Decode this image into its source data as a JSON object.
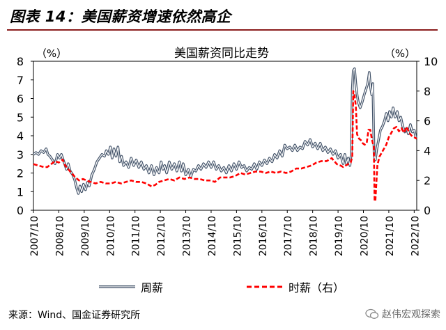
{
  "header": {
    "title": "图表 14：美国薪资增速依然高企"
  },
  "footer": {
    "source": "来源：Wind、国金证券研究所",
    "watermark": "赵伟宏观探索"
  },
  "chart_data": {
    "type": "line",
    "title": "美国薪资同比走势",
    "left_axis_unit": "（%）",
    "right_axis_unit": "（%）",
    "ylim_left": [
      0,
      8
    ],
    "ylim_right": [
      0,
      10
    ],
    "yticks_left": [
      "0",
      "1",
      "2",
      "3",
      "4",
      "5",
      "6",
      "7",
      "8"
    ],
    "yticks_right": [
      "0",
      "2",
      "4",
      "6",
      "8",
      "10"
    ],
    "xticks": [
      "2007/10",
      "2008/10",
      "2009/10",
      "2010/10",
      "2011/10",
      "2012/10",
      "2013/10",
      "2014/10",
      "2015/10",
      "2016/10",
      "2017/10",
      "2018/10",
      "2019/10",
      "2020/10",
      "2021/10",
      "2022/10"
    ],
    "x_start": 2007.75,
    "x_end": 2022.85,
    "series": [
      {
        "name": "周薪",
        "axis": "left",
        "color": "#44546a",
        "style": "double",
        "points": [
          [
            2007.75,
            3.0
          ],
          [
            2007.85,
            3.1
          ],
          [
            2007.95,
            3.0
          ],
          [
            2008.05,
            3.2
          ],
          [
            2008.15,
            3.1
          ],
          [
            2008.25,
            3.3
          ],
          [
            2008.32,
            3.0
          ],
          [
            2008.4,
            2.9
          ],
          [
            2008.5,
            2.7
          ],
          [
            2008.6,
            2.5
          ],
          [
            2008.7,
            3.0
          ],
          [
            2008.78,
            2.8
          ],
          [
            2008.85,
            3.0
          ],
          [
            2008.95,
            2.6
          ],
          [
            2009.05,
            2.2
          ],
          [
            2009.12,
            2.5
          ],
          [
            2009.2,
            2.1
          ],
          [
            2009.3,
            1.9
          ],
          [
            2009.38,
            1.6
          ],
          [
            2009.45,
            1.2
          ],
          [
            2009.52,
            0.9
          ],
          [
            2009.58,
            1.3
          ],
          [
            2009.65,
            1.0
          ],
          [
            2009.72,
            1.4
          ],
          [
            2009.8,
            1.1
          ],
          [
            2009.88,
            1.5
          ],
          [
            2009.95,
            1.3
          ],
          [
            2010.05,
            1.9
          ],
          [
            2010.15,
            2.2
          ],
          [
            2010.25,
            2.6
          ],
          [
            2010.35,
            2.8
          ],
          [
            2010.45,
            3.0
          ],
          [
            2010.55,
            2.9
          ],
          [
            2010.62,
            3.2
          ],
          [
            2010.7,
            3.0
          ],
          [
            2010.78,
            3.4
          ],
          [
            2010.85,
            2.8
          ],
          [
            2010.92,
            3.3
          ],
          [
            2011.0,
            2.9
          ],
          [
            2011.08,
            3.4
          ],
          [
            2011.15,
            2.6
          ],
          [
            2011.22,
            2.9
          ],
          [
            2011.3,
            2.4
          ],
          [
            2011.4,
            2.6
          ],
          [
            2011.5,
            2.3
          ],
          [
            2011.6,
            2.8
          ],
          [
            2011.7,
            2.4
          ],
          [
            2011.8,
            2.7
          ],
          [
            2011.9,
            2.3
          ],
          [
            2012.0,
            2.6
          ],
          [
            2012.1,
            2.2
          ],
          [
            2012.2,
            2.4
          ],
          [
            2012.3,
            2.0
          ],
          [
            2012.4,
            2.4
          ],
          [
            2012.5,
            1.9
          ],
          [
            2012.6,
            2.3
          ],
          [
            2012.7,
            2.0
          ],
          [
            2012.78,
            2.6
          ],
          [
            2012.85,
            2.2
          ],
          [
            2012.92,
            2.4
          ],
          [
            2013.0,
            2.0
          ],
          [
            2013.1,
            2.6
          ],
          [
            2013.2,
            2.2
          ],
          [
            2013.3,
            2.5
          ],
          [
            2013.4,
            2.1
          ],
          [
            2013.5,
            2.6
          ],
          [
            2013.58,
            2.1
          ],
          [
            2013.65,
            2.5
          ],
          [
            2013.75,
            1.9
          ],
          [
            2013.85,
            2.2
          ],
          [
            2013.95,
            1.8
          ],
          [
            2014.05,
            2.2
          ],
          [
            2014.15,
            2.1
          ],
          [
            2014.25,
            2.4
          ],
          [
            2014.35,
            2.2
          ],
          [
            2014.45,
            2.5
          ],
          [
            2014.55,
            2.3
          ],
          [
            2014.65,
            2.6
          ],
          [
            2014.75,
            2.3
          ],
          [
            2014.85,
            2.6
          ],
          [
            2014.95,
            2.2
          ],
          [
            2015.05,
            2.4
          ],
          [
            2015.15,
            2.1
          ],
          [
            2015.25,
            2.3
          ],
          [
            2015.35,
            2.0
          ],
          [
            2015.45,
            2.4
          ],
          [
            2015.55,
            2.1
          ],
          [
            2015.65,
            2.5
          ],
          [
            2015.75,
            2.2
          ],
          [
            2015.85,
            2.6
          ],
          [
            2015.95,
            2.3
          ],
          [
            2016.05,
            2.4
          ],
          [
            2016.15,
            2.1
          ],
          [
            2016.25,
            2.3
          ],
          [
            2016.35,
            2.2
          ],
          [
            2016.45,
            2.5
          ],
          [
            2016.55,
            2.2
          ],
          [
            2016.65,
            2.6
          ],
          [
            2016.75,
            2.4
          ],
          [
            2016.85,
            2.7
          ],
          [
            2016.95,
            2.5
          ],
          [
            2017.05,
            2.8
          ],
          [
            2017.15,
            2.6
          ],
          [
            2017.25,
            3.0
          ],
          [
            2017.35,
            2.8
          ],
          [
            2017.45,
            3.2
          ],
          [
            2017.55,
            2.9
          ],
          [
            2017.65,
            3.5
          ],
          [
            2017.75,
            3.3
          ],
          [
            2017.85,
            3.4
          ],
          [
            2017.95,
            3.2
          ],
          [
            2018.05,
            3.5
          ],
          [
            2018.15,
            3.2
          ],
          [
            2018.25,
            3.4
          ],
          [
            2018.35,
            3.3
          ],
          [
            2018.45,
            3.7
          ],
          [
            2018.55,
            3.5
          ],
          [
            2018.65,
            3.8
          ],
          [
            2018.75,
            3.4
          ],
          [
            2018.85,
            3.6
          ],
          [
            2018.95,
            3.3
          ],
          [
            2019.05,
            3.6
          ],
          [
            2019.15,
            3.2
          ],
          [
            2019.25,
            3.4
          ],
          [
            2019.35,
            3.1
          ],
          [
            2019.45,
            3.3
          ],
          [
            2019.55,
            3.0
          ],
          [
            2019.65,
            3.2
          ],
          [
            2019.75,
            2.8
          ],
          [
            2019.85,
            3.0
          ],
          [
            2019.95,
            2.5
          ],
          [
            2020.02,
            3.0
          ],
          [
            2020.08,
            2.5
          ],
          [
            2020.15,
            2.8
          ],
          [
            2020.22,
            2.4
          ],
          [
            2020.27,
            3.0
          ],
          [
            2020.31,
            6.5
          ],
          [
            2020.35,
            7.5
          ],
          [
            2020.4,
            7.6
          ],
          [
            2020.45,
            6.8
          ],
          [
            2020.5,
            6.2
          ],
          [
            2020.55,
            5.8
          ],
          [
            2020.62,
            5.5
          ],
          [
            2020.7,
            5.8
          ],
          [
            2020.78,
            6.2
          ],
          [
            2020.85,
            6.5
          ],
          [
            2020.92,
            6.8
          ],
          [
            2020.98,
            7.4
          ],
          [
            2021.03,
            6.6
          ],
          [
            2021.08,
            6.2
          ],
          [
            2021.12,
            6.8
          ],
          [
            2021.17,
            3.0
          ],
          [
            2021.22,
            2.7
          ],
          [
            2021.28,
            3.3
          ],
          [
            2021.35,
            3.8
          ],
          [
            2021.42,
            4.3
          ],
          [
            2021.5,
            4.5
          ],
          [
            2021.58,
            4.8
          ],
          [
            2021.65,
            5.2
          ],
          [
            2021.72,
            4.8
          ],
          [
            2021.78,
            5.3
          ],
          [
            2021.85,
            5.0
          ],
          [
            2021.92,
            5.5
          ],
          [
            2022.0,
            5.0
          ],
          [
            2022.08,
            5.3
          ],
          [
            2022.15,
            4.8
          ],
          [
            2022.22,
            5.0
          ],
          [
            2022.3,
            4.5
          ],
          [
            2022.38,
            4.2
          ],
          [
            2022.45,
            4.4
          ],
          [
            2022.52,
            4.1
          ],
          [
            2022.6,
            4.6
          ],
          [
            2022.68,
            4.2
          ],
          [
            2022.75,
            4.3
          ],
          [
            2022.82,
            3.9
          ]
        ]
      },
      {
        "name": "时薪（右）",
        "axis": "right",
        "color": "#ff0000",
        "style": "dashed",
        "points": [
          [
            2007.75,
            3.1
          ],
          [
            2007.95,
            3.0
          ],
          [
            2008.15,
            2.9
          ],
          [
            2008.3,
            2.9
          ],
          [
            2008.45,
            3.1
          ],
          [
            2008.6,
            3.3
          ],
          [
            2008.75,
            3.2
          ],
          [
            2008.9,
            3.4
          ],
          [
            2009.0,
            3.0
          ],
          [
            2009.1,
            2.8
          ],
          [
            2009.2,
            2.6
          ],
          [
            2009.3,
            2.4
          ],
          [
            2009.4,
            2.2
          ],
          [
            2009.55,
            2.0
          ],
          [
            2009.7,
            2.1
          ],
          [
            2009.85,
            2.0
          ],
          [
            2010.0,
            1.9
          ],
          [
            2010.2,
            1.8
          ],
          [
            2010.4,
            1.9
          ],
          [
            2010.6,
            1.8
          ],
          [
            2010.8,
            1.8
          ],
          [
            2011.0,
            1.9
          ],
          [
            2011.2,
            1.8
          ],
          [
            2011.4,
            1.9
          ],
          [
            2011.6,
            2.0
          ],
          [
            2011.8,
            1.9
          ],
          [
            2012.0,
            1.9
          ],
          [
            2012.2,
            1.8
          ],
          [
            2012.4,
            1.6
          ],
          [
            2012.55,
            1.7
          ],
          [
            2012.7,
            1.9
          ],
          [
            2012.9,
            2.0
          ],
          [
            2013.1,
            2.1
          ],
          [
            2013.3,
            2.0
          ],
          [
            2013.5,
            2.2
          ],
          [
            2013.7,
            2.1
          ],
          [
            2013.9,
            2.2
          ],
          [
            2014.1,
            2.1
          ],
          [
            2014.3,
            2.1
          ],
          [
            2014.5,
            2.0
          ],
          [
            2014.7,
            2.0
          ],
          [
            2014.9,
            1.9
          ],
          [
            2015.1,
            2.2
          ],
          [
            2015.3,
            2.2
          ],
          [
            2015.5,
            2.2
          ],
          [
            2015.7,
            2.3
          ],
          [
            2015.9,
            2.5
          ],
          [
            2016.1,
            2.4
          ],
          [
            2016.3,
            2.5
          ],
          [
            2016.5,
            2.6
          ],
          [
            2016.7,
            2.6
          ],
          [
            2016.9,
            2.5
          ],
          [
            2017.1,
            2.6
          ],
          [
            2017.3,
            2.5
          ],
          [
            2017.5,
            2.6
          ],
          [
            2017.7,
            2.5
          ],
          [
            2017.9,
            2.6
          ],
          [
            2018.1,
            2.8
          ],
          [
            2018.3,
            2.8
          ],
          [
            2018.5,
            2.9
          ],
          [
            2018.7,
            3.0
          ],
          [
            2018.9,
            3.2
          ],
          [
            2019.1,
            3.3
          ],
          [
            2019.3,
            3.3
          ],
          [
            2019.5,
            3.5
          ],
          [
            2019.7,
            3.1
          ],
          [
            2019.85,
            3.0
          ],
          [
            2019.95,
            2.9
          ],
          [
            2020.05,
            3.0
          ],
          [
            2020.15,
            3.1
          ],
          [
            2020.25,
            3.2
          ],
          [
            2020.31,
            3.6
          ],
          [
            2020.35,
            8.0
          ],
          [
            2020.4,
            7.7
          ],
          [
            2020.45,
            7.0
          ],
          [
            2020.5,
            5.1
          ],
          [
            2020.58,
            4.8
          ],
          [
            2020.65,
            4.7
          ],
          [
            2020.72,
            4.5
          ],
          [
            2020.8,
            4.4
          ],
          [
            2020.88,
            4.5
          ],
          [
            2020.95,
            5.4
          ],
          [
            2021.02,
            5.4
          ],
          [
            2021.08,
            4.8
          ],
          [
            2021.12,
            4.5
          ],
          [
            2021.16,
            4.3
          ],
          [
            2021.19,
            0.7
          ],
          [
            2021.22,
            0.6
          ],
          [
            2021.25,
            1.5
          ],
          [
            2021.3,
            3.0
          ],
          [
            2021.38,
            3.6
          ],
          [
            2021.45,
            3.8
          ],
          [
            2021.55,
            4.1
          ],
          [
            2021.65,
            4.4
          ],
          [
            2021.75,
            4.9
          ],
          [
            2021.85,
            5.2
          ],
          [
            2021.95,
            5.5
          ],
          [
            2022.05,
            5.6
          ],
          [
            2022.15,
            5.3
          ],
          [
            2022.25,
            5.5
          ],
          [
            2022.35,
            5.2
          ],
          [
            2022.45,
            5.6
          ],
          [
            2022.55,
            5.2
          ],
          [
            2022.65,
            5.0
          ],
          [
            2022.75,
            4.9
          ],
          [
            2022.85,
            4.8
          ]
        ]
      }
    ]
  }
}
